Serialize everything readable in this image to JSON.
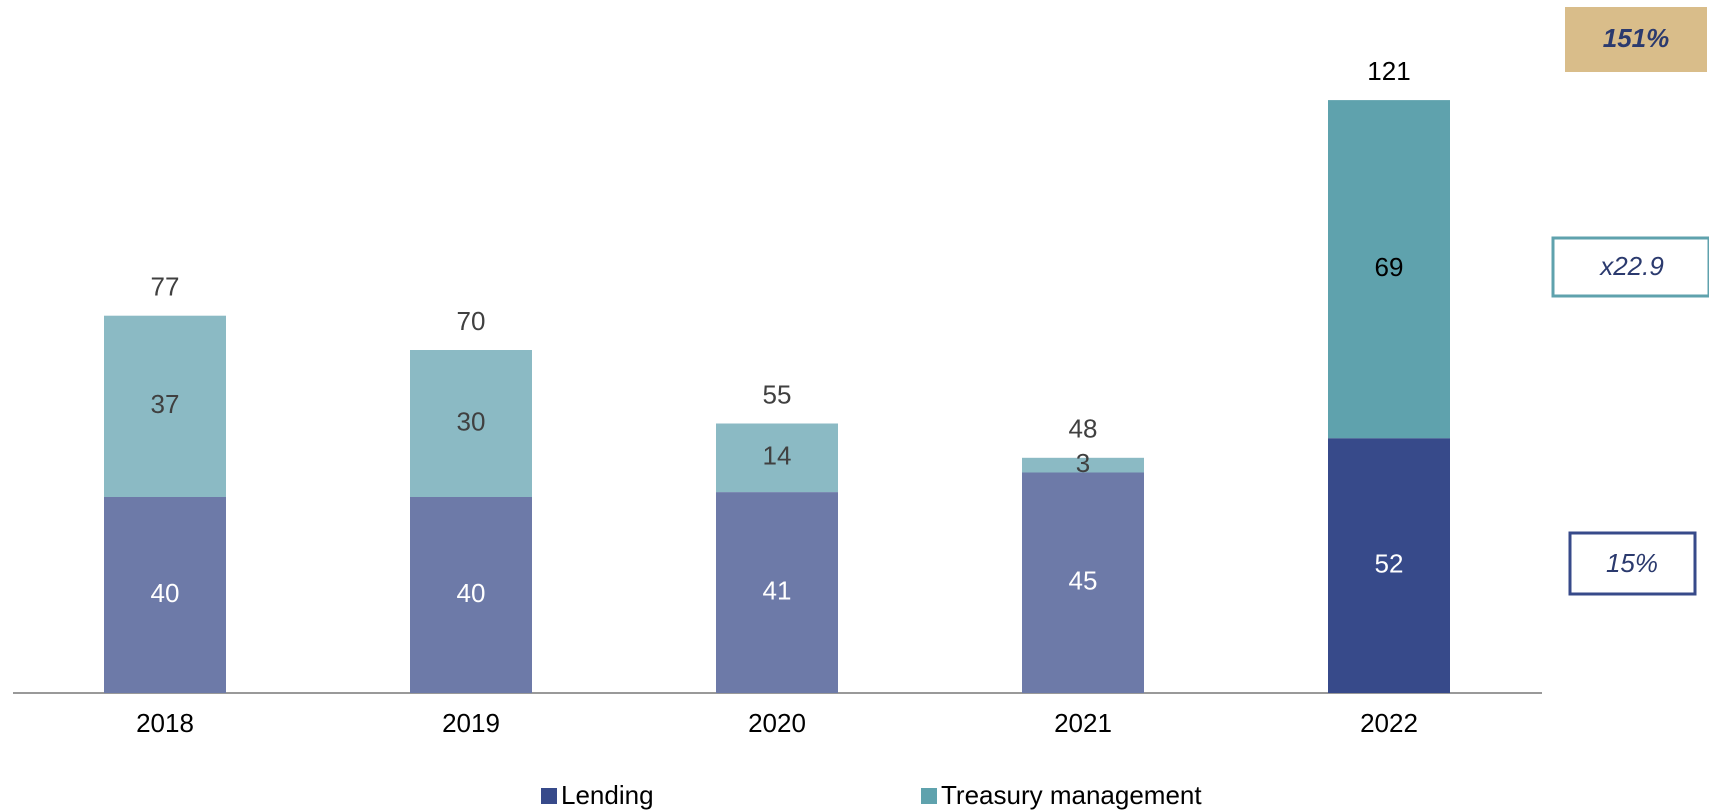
{
  "chart_data": {
    "type": "stacked_bar",
    "categories": [
      "2018",
      "2019",
      "2020",
      "2021",
      "2022"
    ],
    "series": [
      {
        "name": "Lending",
        "color": "#374a8a",
        "colors": [
          "#6d7aa8",
          "#6d7aa8",
          "#6d7aa8",
          "#6d7aa8",
          "#374a8a"
        ],
        "values": [
          40,
          40,
          41,
          45,
          52
        ]
      },
      {
        "name": "Treasury management",
        "color": "#5fa2ad",
        "colors": [
          "#8bbac4",
          "#8bbac4",
          "#8bbac4",
          "#8bbac4",
          "#5fa2ad"
        ],
        "values": [
          37,
          30,
          14,
          3,
          69
        ]
      }
    ],
    "totals": [
      77,
      70,
      55,
      48,
      121
    ],
    "ylim": [
      0,
      140
    ],
    "annotations": [
      "151%",
      "x22.9",
      "15%"
    ]
  }
}
